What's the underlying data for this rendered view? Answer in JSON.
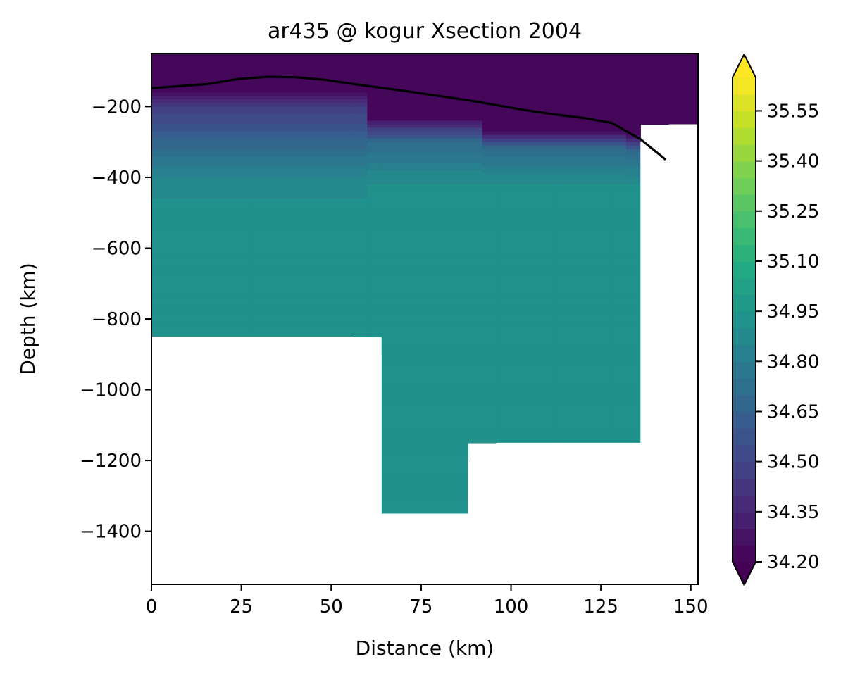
{
  "chart_data": {
    "type": "contourf",
    "title": "ar435 @ kogur Xsection 2004",
    "xlabel": "Distance (km)",
    "ylabel": "Depth (km)",
    "xlim": [
      0,
      152
    ],
    "ylim": [
      -1550,
      -50
    ],
    "xticks": [
      0,
      25,
      50,
      75,
      100,
      125,
      150
    ],
    "yticks": [
      -200,
      -400,
      -600,
      -800,
      -1000,
      -1200,
      -1400
    ],
    "colormap": "viridis",
    "colorbar": {
      "min": 34.2,
      "max": 35.65,
      "extend": "both",
      "ticks": [
        34.2,
        34.35,
        34.5,
        34.65,
        34.8,
        34.95,
        35.1,
        35.25,
        35.4,
        35.55
      ],
      "tick_labels": [
        "34.20",
        "34.35",
        "34.50",
        "34.65",
        "34.80",
        "34.95",
        "35.10",
        "35.25",
        "35.40",
        "35.55"
      ],
      "level_step": 0.05
    },
    "profiles": [
      {
        "x": 0,
        "values": [
          {
            "depth": -50,
            "value": 34.2
          },
          {
            "depth": -150,
            "value": 34.2
          },
          {
            "depth": -200,
            "value": 34.45
          },
          {
            "depth": -300,
            "value": 34.67
          },
          {
            "depth": -400,
            "value": 34.85
          },
          {
            "depth": -500,
            "value": 34.93
          },
          {
            "depth": -850,
            "value": 34.93
          }
        ]
      },
      {
        "x": 56,
        "values": [
          {
            "depth": -50,
            "value": 34.2
          },
          {
            "depth": -150,
            "value": 34.2
          },
          {
            "depth": -200,
            "value": 34.45
          },
          {
            "depth": -300,
            "value": 34.67
          },
          {
            "depth": -400,
            "value": 34.85
          },
          {
            "depth": -500,
            "value": 34.93
          },
          {
            "depth": -850,
            "value": 34.93
          }
        ]
      },
      {
        "x": 64,
        "values": [
          {
            "depth": -50,
            "value": 34.2
          },
          {
            "depth": -230,
            "value": 34.2
          },
          {
            "depth": -300,
            "value": 34.7
          },
          {
            "depth": -400,
            "value": 34.88
          },
          {
            "depth": -440,
            "value": 34.93
          },
          {
            "depth": -1350,
            "value": 34.93
          }
        ]
      },
      {
        "x": 88,
        "values": [
          {
            "depth": -50,
            "value": 34.2
          },
          {
            "depth": -230,
            "value": 34.2
          },
          {
            "depth": -300,
            "value": 34.7
          },
          {
            "depth": -400,
            "value": 34.88
          },
          {
            "depth": -440,
            "value": 34.93
          },
          {
            "depth": -1350,
            "value": 34.93
          }
        ]
      },
      {
        "x": 96,
        "values": [
          {
            "depth": -50,
            "value": 34.2
          },
          {
            "depth": -265,
            "value": 34.2
          },
          {
            "depth": -320,
            "value": 34.7
          },
          {
            "depth": -410,
            "value": 34.88
          },
          {
            "depth": -445,
            "value": 34.93
          },
          {
            "depth": -1150,
            "value": 34.93
          }
        ]
      },
      {
        "x": 128,
        "values": [
          {
            "depth": -50,
            "value": 34.2
          },
          {
            "depth": -265,
            "value": 34.2
          },
          {
            "depth": -320,
            "value": 34.7
          },
          {
            "depth": -410,
            "value": 34.88
          },
          {
            "depth": -445,
            "value": 34.93
          },
          {
            "depth": -1150,
            "value": 34.93
          }
        ]
      },
      {
        "x": 136,
        "values": [
          {
            "depth": -50,
            "value": 34.2
          },
          {
            "depth": -280,
            "value": 34.2
          },
          {
            "depth": -330,
            "value": 34.7
          },
          {
            "depth": -410,
            "value": 34.88
          },
          {
            "depth": -445,
            "value": 34.93
          },
          {
            "depth": -1150,
            "value": 34.93
          }
        ]
      },
      {
        "x": 144,
        "values": [
          {
            "depth": -50,
            "value": 34.2
          },
          {
            "depth": -250,
            "value": 34.2
          }
        ]
      },
      {
        "x": 152,
        "values": [
          {
            "depth": -50,
            "value": 34.2
          },
          {
            "depth": -250,
            "value": 34.2
          }
        ]
      }
    ],
    "mask_bottom": [
      {
        "x": 0,
        "depth": -850
      },
      {
        "x": 56,
        "depth": -850
      },
      {
        "x": 64,
        "depth": -900
      },
      {
        "x": 64,
        "depth": -1350
      },
      {
        "x": 88,
        "depth": -1350
      },
      {
        "x": 88,
        "depth": -1200
      },
      {
        "x": 96,
        "depth": -1150
      },
      {
        "x": 136,
        "depth": -1150
      },
      {
        "x": 136,
        "depth": -300
      },
      {
        "x": 144,
        "depth": -250
      },
      {
        "x": 152,
        "depth": -250
      }
    ],
    "line": {
      "color": "#000000",
      "x": [
        0,
        8,
        16,
        24,
        32,
        40,
        48,
        56,
        64,
        72,
        80,
        88,
        96,
        104,
        112,
        120,
        128,
        136,
        143
      ],
      "y": [
        -148,
        -142,
        -136,
        -122,
        -116,
        -117,
        -124,
        -136,
        -147,
        -158,
        -170,
        -182,
        -196,
        -210,
        -222,
        -232,
        -246,
        -292,
        -350
      ]
    }
  }
}
